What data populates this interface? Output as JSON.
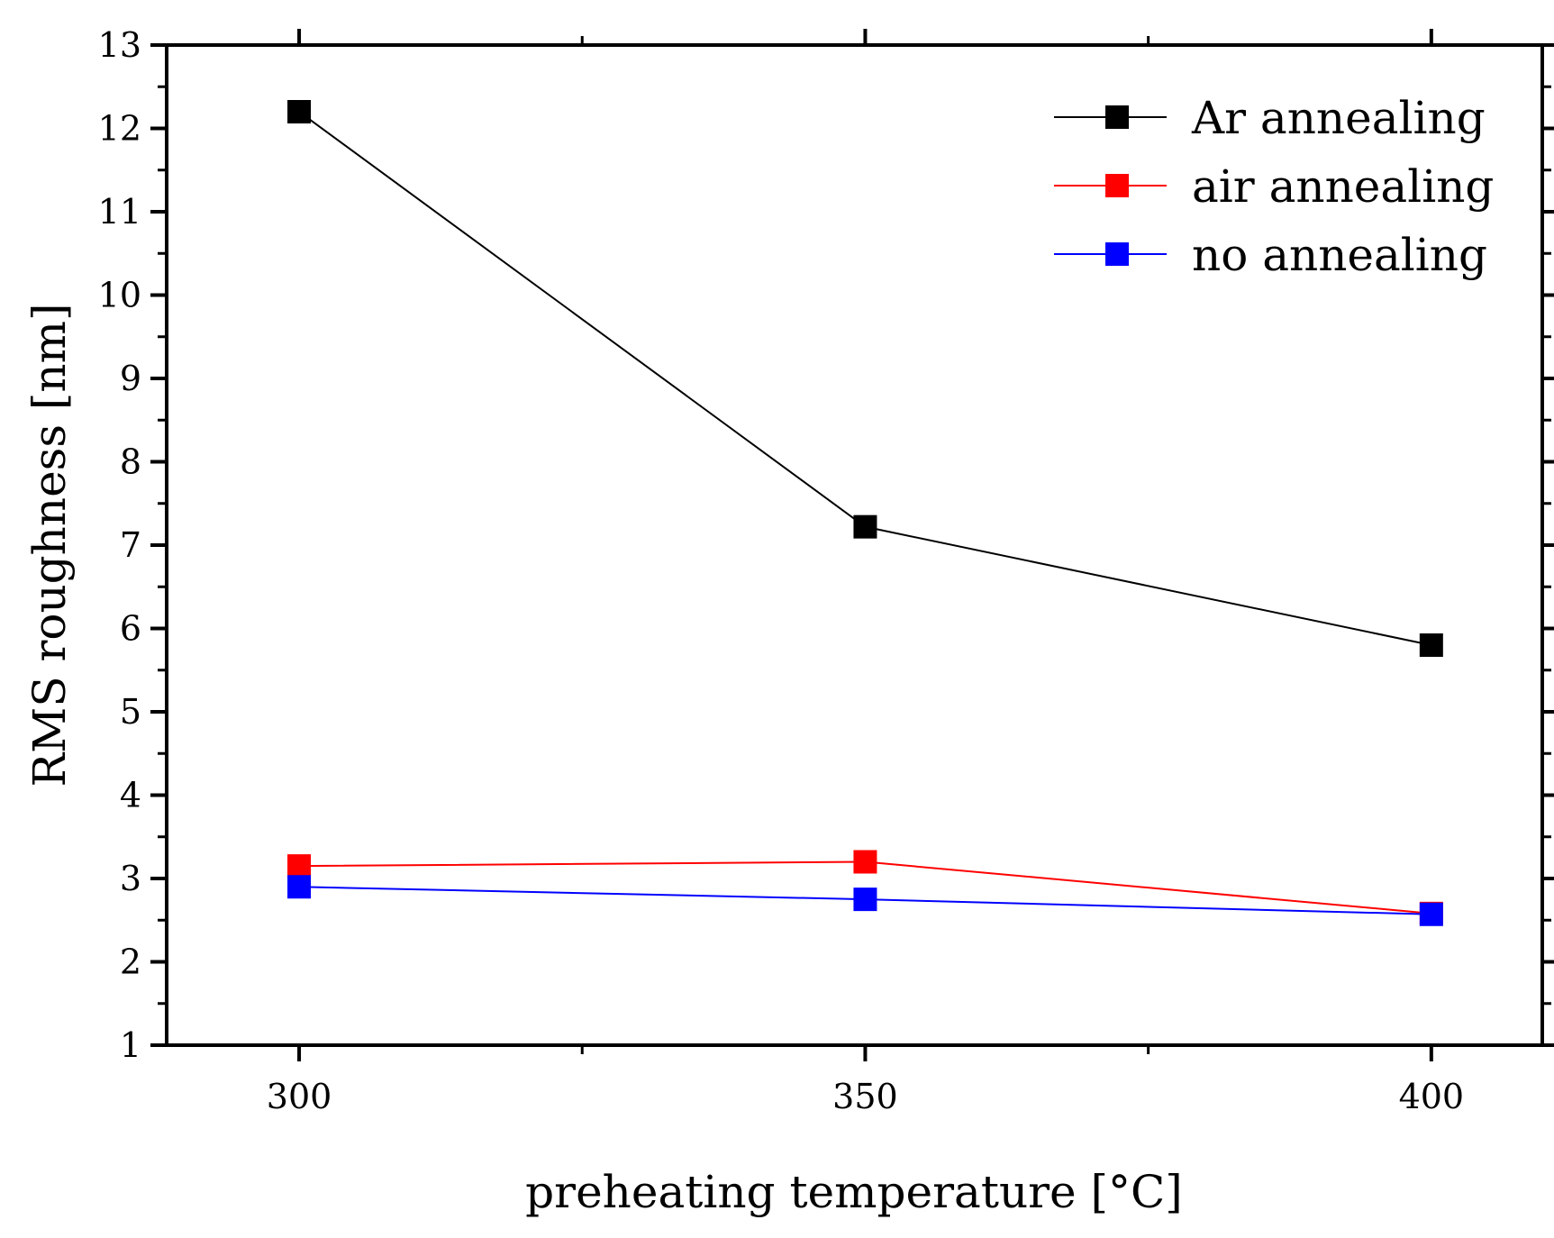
{
  "chart_data": {
    "type": "line",
    "title": "",
    "xlabel": "preheating temperature [°C]",
    "ylabel": "RMS roughness [nm]",
    "x": [
      300,
      350,
      400
    ],
    "xlim": [
      288.3,
      409.8
    ],
    "ylim": [
      1,
      13
    ],
    "xticks": [
      300,
      350,
      400
    ],
    "xticks_minor": [
      325,
      375
    ],
    "yticks": [
      1,
      2,
      3,
      4,
      5,
      6,
      7,
      8,
      9,
      10,
      11,
      12,
      13
    ],
    "ytick_labels": [
      "1",
      "2",
      "3",
      "4",
      "5",
      "6",
      "7",
      "8",
      "9",
      "10",
      "11",
      "12",
      "13"
    ],
    "xtick_labels": [
      "300",
      "350",
      "400"
    ],
    "grid": false,
    "legend_position": "top-right",
    "series": [
      {
        "name": "Ar annealing",
        "color": "#000000",
        "values": [
          12.2,
          7.22,
          5.8
        ]
      },
      {
        "name": "air annealing",
        "color": "#ff0000",
        "values": [
          3.15,
          3.2,
          2.58
        ]
      },
      {
        "name": "no annealing",
        "color": "#0000ff",
        "values": [
          2.9,
          2.75,
          2.57
        ]
      }
    ]
  }
}
